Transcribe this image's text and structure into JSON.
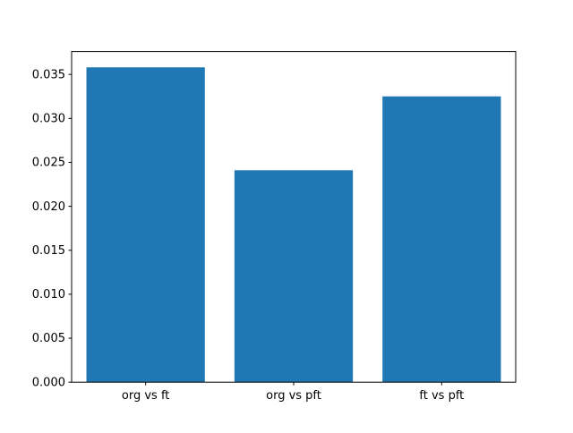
{
  "figure": {
    "background": "#ffffff"
  },
  "chart_data": {
    "type": "bar",
    "categories": [
      "org vs ft",
      "org vs pft",
      "ft vs pft"
    ],
    "values": [
      0.0358,
      0.0241,
      0.0325
    ],
    "title": "",
    "xlabel": "",
    "ylabel": "",
    "ylim": [
      0,
      0.0376
    ],
    "yticks": [
      0.0,
      0.005,
      0.01,
      0.015,
      0.02,
      0.025,
      0.03,
      0.035
    ],
    "ytick_decimals": 3,
    "bar_width_fraction": 0.8,
    "bar_color": "#1f77b4",
    "axis_color": "#000000",
    "text_color": "#000000",
    "tick_font_px": 13,
    "grid": false,
    "legend": null
  }
}
